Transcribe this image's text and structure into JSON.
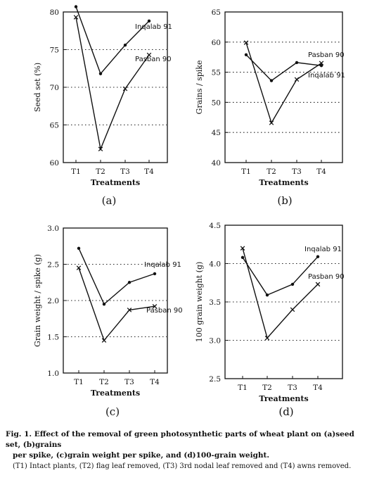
{
  "chart_data": [
    {
      "type": "line",
      "panel_label": "(a)",
      "xlabel": "Treatments",
      "ylabel": "Seed set (%)",
      "categories": [
        "T1",
        "T2",
        "T3",
        "T4"
      ],
      "ylim": [
        60,
        80
      ],
      "yticks": [
        60,
        65,
        70,
        75,
        80
      ],
      "grid": "dotted-horizontal",
      "series": [
        {
          "name": "Inqalab 91",
          "marker": "dot",
          "values": [
            80.7,
            71.8,
            75.6,
            78.8
          ]
        },
        {
          "name": "Pasban 90",
          "marker": "cross",
          "values": [
            79.3,
            61.8,
            69.8,
            74.3
          ]
        }
      ]
    },
    {
      "type": "line",
      "panel_label": "(b)",
      "xlabel": "Treatments",
      "ylabel": "Grains / spike",
      "categories": [
        "T1",
        "T2",
        "T3",
        "T4"
      ],
      "ylim": [
        40,
        65
      ],
      "yticks": [
        40,
        45,
        50,
        55,
        60,
        65
      ],
      "grid": "dotted-horizontal",
      "series": [
        {
          "name": "Inqalab 91",
          "marker": "dot",
          "values": [
            57.9,
            53.6,
            56.6,
            56.1
          ]
        },
        {
          "name": "Pasban 90",
          "marker": "cross",
          "values": [
            59.9,
            46.6,
            53.8,
            56.5
          ]
        }
      ]
    },
    {
      "type": "line",
      "panel_label": "(c)",
      "xlabel": "Treatments",
      "ylabel": "Grain weight / spike (g)",
      "categories": [
        "T1",
        "T2",
        "T3",
        "T4"
      ],
      "ylim": [
        1.0,
        3.0
      ],
      "yticks": [
        "1.0",
        "1.5",
        "2.0",
        "2.5",
        "3.0"
      ],
      "grid": "dotted-horizontal",
      "series": [
        {
          "name": "Inqalab 91",
          "marker": "dot",
          "values": [
            2.72,
            1.95,
            2.25,
            2.37
          ]
        },
        {
          "name": "Pasban 90",
          "marker": "cross",
          "values": [
            2.45,
            1.45,
            1.87,
            1.92
          ]
        }
      ]
    },
    {
      "type": "line",
      "panel_label": "(d)",
      "xlabel": "Treatments",
      "ylabel": "100 grain weight (g)",
      "categories": [
        "T1",
        "T2",
        "T3",
        "T4"
      ],
      "ylim": [
        2.5,
        4.5
      ],
      "yticks": [
        "2.5",
        "3.0",
        "3.5",
        "4.0",
        "4.5"
      ],
      "grid": "dotted-horizontal",
      "series": [
        {
          "name": "Inqalab 91",
          "marker": "dot",
          "values": [
            4.08,
            3.59,
            3.73,
            4.09
          ]
        },
        {
          "name": "Pasban 90",
          "marker": "cross",
          "values": [
            4.2,
            3.03,
            3.4,
            3.73
          ]
        }
      ]
    }
  ],
  "caption": {
    "fig_label": "Fig. 1.",
    "line1": "Effect of the removal of green photosynthetic parts of wheat plant on (a)seed set, (b)grains",
    "line2": "per spike, (c)grain weight per spike, and (d)100-grain weight.",
    "line3": "(T1) Intact plants, (T2) flag leaf removed, (T3) 3rd nodal leaf removed and (T4) awns removed."
  }
}
